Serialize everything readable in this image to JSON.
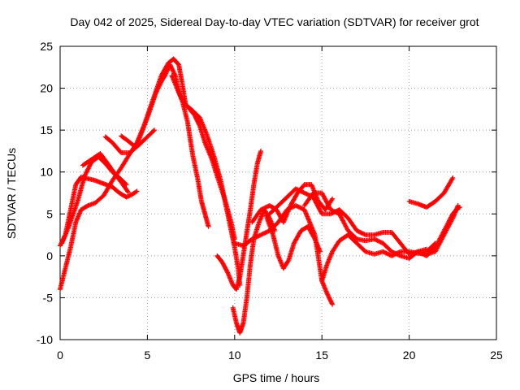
{
  "chart_data": {
    "type": "scatter",
    "title": "Day 042 of 2025, Sidereal Day-to-day VTEC variation (SDTVAR) for receiver grot",
    "xlabel": "GPS time / hours",
    "ylabel": "SDTVAR / TECUs",
    "xlim": [
      0,
      25
    ],
    "ylim": [
      -10,
      25
    ],
    "x_ticks": [
      0,
      5,
      10,
      15,
      20,
      25
    ],
    "y_ticks": [
      -10,
      -5,
      0,
      5,
      10,
      15,
      20,
      25
    ],
    "grid": true,
    "marker": "plus",
    "color": "#ff0000",
    "series": [
      {
        "points": [
          [
            0,
            1.2
          ],
          [
            0.3,
            2.5
          ],
          [
            0.6,
            5.5
          ],
          [
            0.9,
            8.5
          ],
          [
            1.2,
            9.4
          ],
          [
            1.6,
            9.2
          ],
          [
            2.0,
            9.0
          ],
          [
            2.5,
            8.6
          ],
          [
            3.0,
            8.2
          ],
          [
            3.4,
            7.5
          ],
          [
            3.8,
            7.0
          ],
          [
            4.1,
            7.3
          ],
          [
            4.4,
            7.7
          ]
        ]
      },
      {
        "points": [
          [
            0,
            -4.0
          ],
          [
            0.3,
            -1.5
          ],
          [
            0.6,
            1.0
          ],
          [
            0.9,
            4.0
          ],
          [
            1.2,
            5.5
          ],
          [
            1.6,
            6.0
          ],
          [
            2.0,
            6.3
          ],
          [
            2.5,
            7.2
          ],
          [
            3.0,
            9.0
          ],
          [
            3.5,
            10.5
          ],
          [
            4.0,
            12.2
          ],
          [
            4.5,
            13.8
          ],
          [
            5.0,
            16.5
          ],
          [
            5.5,
            19.5
          ],
          [
            5.8,
            20.8
          ],
          [
            6.0,
            21.5
          ]
        ]
      },
      {
        "points": [
          [
            0.1,
            1.5
          ],
          [
            0.5,
            3.5
          ],
          [
            1.0,
            6.5
          ],
          [
            1.4,
            9.5
          ],
          [
            1.8,
            11.2
          ],
          [
            2.2,
            11.8
          ],
          [
            2.6,
            11.0
          ],
          [
            3.0,
            10.0
          ],
          [
            3.4,
            9.3
          ],
          [
            3.8,
            8.5
          ]
        ]
      },
      {
        "points": [
          [
            1.3,
            10.8
          ],
          [
            1.8,
            11.5
          ],
          [
            2.3,
            12.2
          ],
          [
            2.8,
            10.8
          ],
          [
            3.2,
            9.6
          ],
          [
            3.6,
            8.5
          ],
          [
            3.9,
            7.6
          ]
        ]
      },
      {
        "points": [
          [
            2.6,
            14.2
          ],
          [
            3.0,
            13.5
          ],
          [
            3.5,
            12.3
          ],
          [
            4.0,
            12.3
          ],
          [
            4.5,
            13.2
          ],
          [
            5.0,
            14.2
          ],
          [
            5.4,
            15.0
          ]
        ]
      },
      {
        "points": [
          [
            3.5,
            14.3
          ],
          [
            3.9,
            13.7
          ],
          [
            4.3,
            13.0
          ],
          [
            4.8,
            15.5
          ],
          [
            5.3,
            18.5
          ],
          [
            5.8,
            21.5
          ],
          [
            6.2,
            23.0
          ],
          [
            6.5,
            23.5
          ],
          [
            6.8,
            22.8
          ],
          [
            7.0,
            20.5
          ],
          [
            7.2,
            18.0
          ],
          [
            7.5,
            17.5
          ],
          [
            8.0,
            16.5
          ],
          [
            8.4,
            14.5
          ],
          [
            8.8,
            12.0
          ],
          [
            9.2,
            9.0
          ],
          [
            9.5,
            6.0
          ],
          [
            9.8,
            3.0
          ],
          [
            10.0,
            1.0
          ],
          [
            10.2,
            -1.5
          ],
          [
            10.3,
            -3.5
          ]
        ]
      },
      {
        "points": [
          [
            6.0,
            21.5
          ],
          [
            6.3,
            22.8
          ],
          [
            6.6,
            21.5
          ],
          [
            6.8,
            19.5
          ],
          [
            7.0,
            18.5
          ],
          [
            7.3,
            17.8
          ],
          [
            7.7,
            16.8
          ],
          [
            8.0,
            15.5
          ],
          [
            8.3,
            13.5
          ],
          [
            8.7,
            11.5
          ],
          [
            9.0,
            9.5
          ],
          [
            9.4,
            7.0
          ],
          [
            9.8,
            4.0
          ],
          [
            10.0,
            2.0
          ]
        ]
      },
      {
        "points": [
          [
            6.4,
            21.5
          ],
          [
            6.7,
            20.0
          ],
          [
            7.0,
            18.5
          ],
          [
            7.3,
            16.0
          ],
          [
            7.6,
            12.0
          ],
          [
            7.9,
            9.0
          ],
          [
            8.1,
            6.5
          ],
          [
            8.3,
            5.0
          ],
          [
            8.5,
            3.5
          ]
        ]
      },
      {
        "points": [
          [
            9.0,
            0.0
          ],
          [
            9.3,
            -0.8
          ],
          [
            9.6,
            -2.0
          ],
          [
            9.9,
            -3.5
          ],
          [
            10.1,
            -4.0
          ],
          [
            10.3,
            -2.5
          ],
          [
            10.6,
            1.5
          ],
          [
            10.9,
            5.5
          ],
          [
            11.1,
            8.5
          ],
          [
            11.3,
            11.0
          ],
          [
            11.5,
            12.5
          ]
        ]
      },
      {
        "points": [
          [
            9.9,
            -6.2
          ],
          [
            10.1,
            -8.0
          ],
          [
            10.3,
            -9.2
          ],
          [
            10.5,
            -8.0
          ],
          [
            10.7,
            -5.0
          ],
          [
            10.9,
            -1.0
          ],
          [
            11.1,
            2.0
          ],
          [
            11.4,
            4.0
          ],
          [
            11.7,
            5.5
          ],
          [
            12.0,
            4.5
          ],
          [
            12.3,
            3.0
          ]
        ]
      },
      {
        "points": [
          [
            10.0,
            1.5
          ],
          [
            10.5,
            1.2
          ],
          [
            11.0,
            2.0
          ],
          [
            11.5,
            2.5
          ],
          [
            12.0,
            3.0
          ],
          [
            12.5,
            4.0
          ],
          [
            13.0,
            5.5
          ],
          [
            13.5,
            6.0
          ],
          [
            14.0,
            5.5
          ],
          [
            14.3,
            4.0
          ],
          [
            14.6,
            2.5
          ],
          [
            15.0,
            -3.0
          ],
          [
            15.3,
            -4.5
          ],
          [
            15.6,
            -5.8
          ]
        ]
      },
      {
        "points": [
          [
            11.0,
            4.0
          ],
          [
            11.5,
            5.5
          ],
          [
            12.0,
            6.0
          ],
          [
            12.4,
            5.5
          ],
          [
            12.8,
            4.0
          ],
          [
            13.2,
            6.0
          ],
          [
            13.6,
            7.5
          ],
          [
            14.0,
            8.5
          ],
          [
            14.4,
            8.5
          ],
          [
            14.8,
            6.5
          ],
          [
            15.2,
            5.5
          ],
          [
            15.6,
            6.8
          ]
        ]
      },
      {
        "points": [
          [
            11.8,
            4.8
          ],
          [
            12.2,
            2.5
          ],
          [
            12.5,
            0.0
          ],
          [
            12.8,
            -1.5
          ],
          [
            13.1,
            -0.5
          ],
          [
            13.4,
            1.5
          ],
          [
            13.8,
            3.0
          ],
          [
            14.2,
            3.5
          ],
          [
            14.6,
            2.0
          ],
          [
            14.9,
            0.5
          ]
        ]
      },
      {
        "points": [
          [
            12.0,
            5.0
          ],
          [
            12.5,
            6.0
          ],
          [
            13.0,
            7.0
          ],
          [
            13.5,
            8.0
          ],
          [
            14.0,
            7.5
          ],
          [
            14.5,
            7.0
          ],
          [
            15.0,
            5.0
          ],
          [
            15.5,
            5.0
          ],
          [
            16.0,
            5.5
          ],
          [
            16.5,
            4.5
          ],
          [
            17.0,
            3.0
          ],
          [
            17.5,
            2.5
          ],
          [
            18.0,
            2.5
          ],
          [
            18.5,
            2.8
          ],
          [
            19.0,
            2.8
          ],
          [
            19.5,
            1.5
          ],
          [
            20.0,
            0.2
          ],
          [
            20.5,
            0.5
          ],
          [
            21.0,
            0.5
          ],
          [
            21.5,
            1.5
          ]
        ]
      },
      {
        "points": [
          [
            14.0,
            6.0
          ],
          [
            14.5,
            7.5
          ],
          [
            15.0,
            7.5
          ],
          [
            15.5,
            5.5
          ],
          [
            16.0,
            5.0
          ],
          [
            16.5,
            3.0
          ],
          [
            17.0,
            2.0
          ],
          [
            17.5,
            1.8
          ],
          [
            18.0,
            2.0
          ],
          [
            18.5,
            1.5
          ],
          [
            19.0,
            0.5
          ],
          [
            19.5,
            0.0
          ],
          [
            20.0,
            -0.3
          ],
          [
            20.5,
            0.5
          ],
          [
            21.0,
            0.8
          ]
        ]
      },
      {
        "points": [
          [
            15.0,
            -3.0
          ],
          [
            15.3,
            -1.0
          ],
          [
            15.6,
            0.5
          ],
          [
            16.0,
            1.8
          ],
          [
            16.5,
            2.5
          ],
          [
            17.0,
            1.5
          ],
          [
            17.5,
            0.5
          ],
          [
            18.0,
            0.2
          ],
          [
            18.5,
            0.5
          ],
          [
            19.0,
            0.0
          ],
          [
            19.5,
            0.5
          ],
          [
            20.0,
            0.5
          ],
          [
            20.5,
            0.3
          ],
          [
            21.0,
            0.2
          ],
          [
            21.5,
            0.5
          ],
          [
            22.0,
            2.5
          ],
          [
            22.5,
            4.5
          ],
          [
            22.8,
            6.0
          ]
        ]
      },
      {
        "points": [
          [
            20.0,
            6.5
          ],
          [
            20.5,
            6.2
          ],
          [
            21.0,
            5.8
          ],
          [
            21.5,
            6.5
          ],
          [
            22.0,
            7.5
          ],
          [
            22.5,
            9.3
          ]
        ]
      },
      {
        "points": [
          [
            20.5,
            0.5
          ],
          [
            21.0,
            0.0
          ],
          [
            21.5,
            1.0
          ],
          [
            22.0,
            3.0
          ],
          [
            22.5,
            5.0
          ],
          [
            22.7,
            5.5
          ],
          [
            22.9,
            5.8
          ]
        ]
      }
    ]
  }
}
